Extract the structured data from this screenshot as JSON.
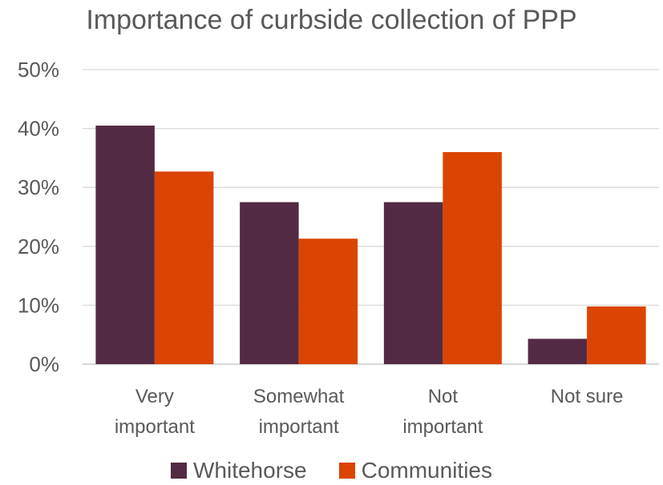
{
  "chart_data": {
    "type": "bar",
    "title": "Importance of curbside collection of PPP",
    "categories": [
      [
        "Very",
        "important"
      ],
      [
        "Somewhat",
        "important"
      ],
      [
        "Not",
        "important"
      ],
      [
        "Not sure"
      ]
    ],
    "series": [
      {
        "name": "Whitehorse",
        "color": "#532a43",
        "values": [
          40.5,
          27.5,
          27.5,
          4.3
        ]
      },
      {
        "name": "Communities",
        "color": "#db4403",
        "values": [
          32.7,
          21.3,
          36.0,
          9.8
        ]
      }
    ],
    "ylim": [
      0,
      50
    ],
    "yticks": [
      "0%",
      "10%",
      "20%",
      "30%",
      "40%",
      "50%"
    ],
    "grid": true,
    "legend_position": "bottom"
  }
}
